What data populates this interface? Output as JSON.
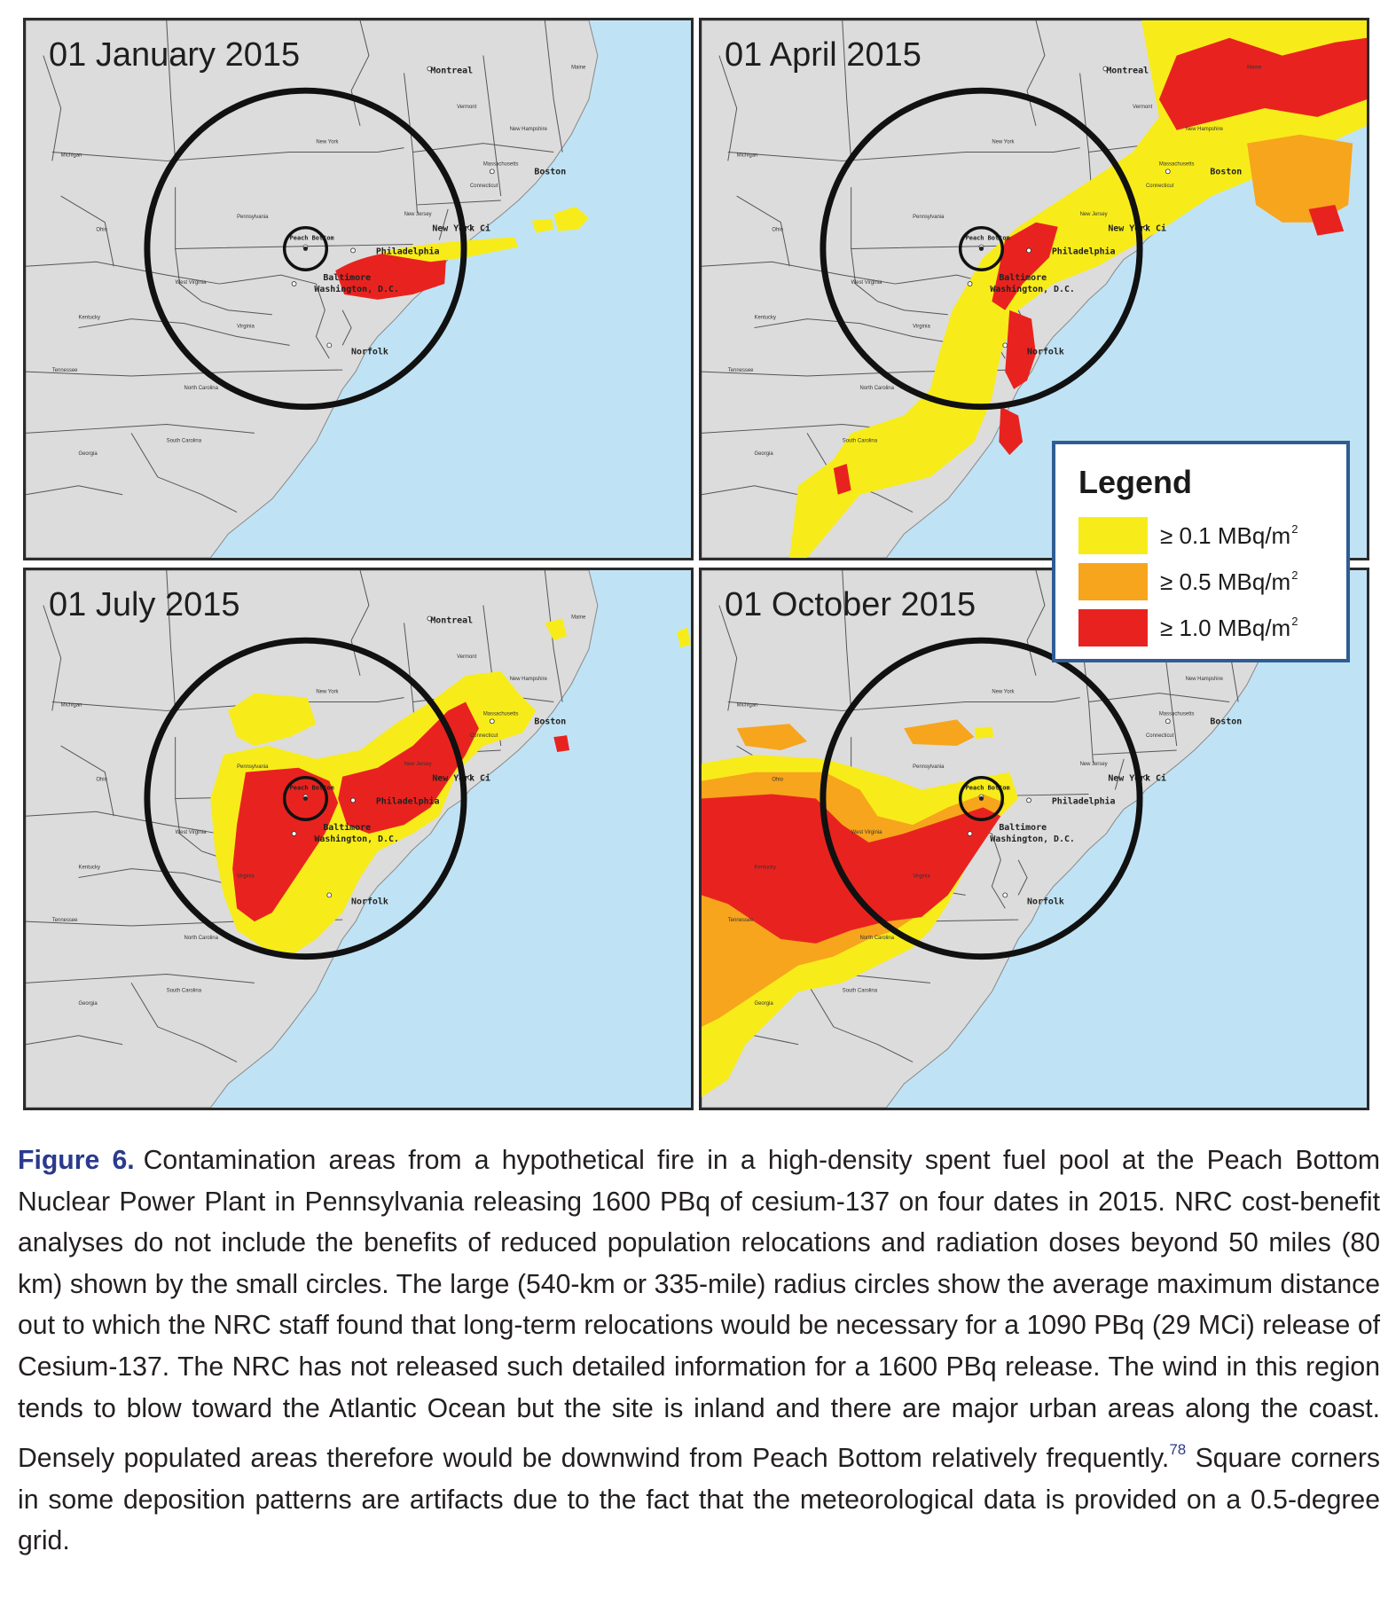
{
  "panels": [
    {
      "date": "01 January 2015"
    },
    {
      "date": "01 April 2015"
    },
    {
      "date": "01 July 2015"
    },
    {
      "date": "01 October 2015"
    }
  ],
  "cities": {
    "montreal": "Montreal",
    "boston": "Boston",
    "new_york": "New York Ci",
    "philadelphia": "Philadelphia",
    "baltimore": "Baltimore",
    "washington": "Washington, D.C.",
    "norfolk": "Norfolk",
    "peach_bottom": "Peach Bottom"
  },
  "states": {
    "michigan": "Michigan",
    "ohio": "Ohio",
    "pennsylvania": "Pennsylvania",
    "new_york": "New York",
    "west_virginia": "West Virginia",
    "virginia": "Virginia",
    "kentucky": "Kentucky",
    "tennessee": "Tennessee",
    "north_carolina": "North Carolina",
    "south_carolina": "South Carolina",
    "georgia": "Georgia",
    "maine": "Maine",
    "vermont": "Vermont",
    "new_hampshire": "New Hampshire",
    "massachusetts": "Massachusetts",
    "connecticut": "Connecticut",
    "new_jersey": "New Jersey"
  },
  "legend": {
    "title": "Legend",
    "items": [
      {
        "label": "≥ 0.1 MBq/m",
        "sup": "2",
        "color": "#f7ec19"
      },
      {
        "label": "≥ 0.5 MBq/m",
        "sup": "2",
        "color": "#f7a51c"
      },
      {
        "label": "≥ 1.0 MBq/m",
        "sup": "2",
        "color": "#e8231f"
      }
    ]
  },
  "colors": {
    "land": "#dcdcdc",
    "water": "#bfe3f5",
    "border": "#555555",
    "circle": "#111111"
  },
  "caption": {
    "label": "Figure 6.",
    "text": "Contamination areas from a hypothetical fire in a high-density spent fuel pool at the Peach Bottom Nuclear Power Plant in Pennsylvania releasing 1600 PBq of cesium-137 on four dates in 2015. NRC cost-benefit analyses do not include the benefits of reduced population relocations and radiation doses beyond 50 miles (80 km) shown by the small circles. The large (540-km or 335-mile) radius circles show the average maximum distance out to which the NRC staff found that long-term relocations would be necessary for a 1090 PBq (29 MCi) release of Cesium-137. The NRC has not released such detailed information for a 1600 PBq release. The wind in this region tends to blow toward the Atlantic Ocean but the site is inland and there are major urban areas along the coast. Densely populated areas therefore would be downwind from Peach Bottom relatively frequently.",
    "ref": "78",
    "text2": " Square corners in some deposition patterns are artifacts due to the fact that the meteorological data is provided on a 0.5-degree grid."
  }
}
